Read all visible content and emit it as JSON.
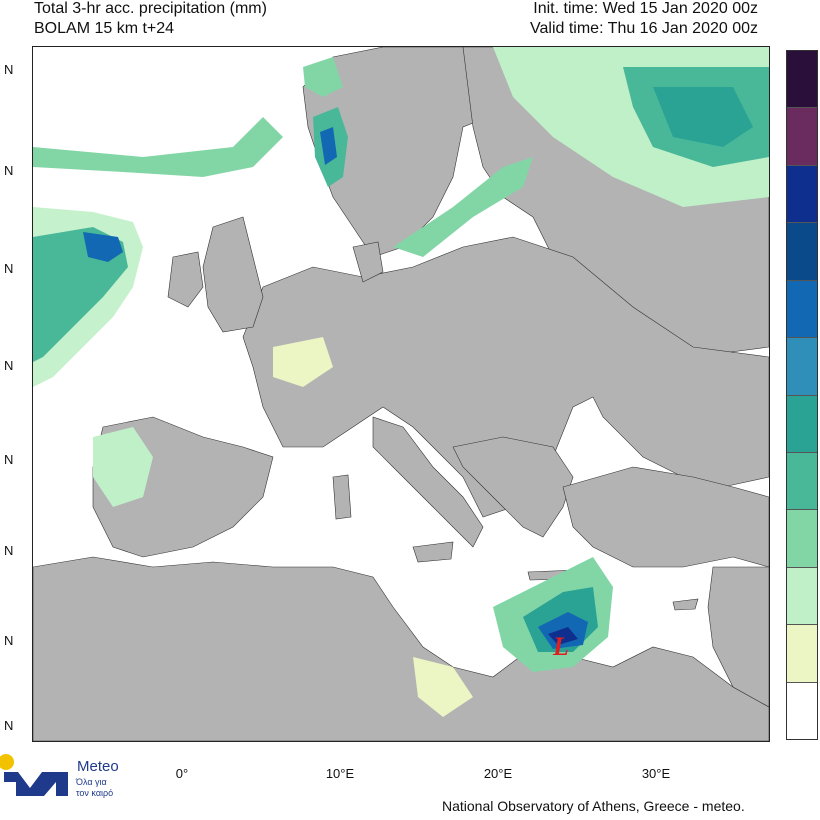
{
  "header": {
    "title_line1": "Total 3-hr acc. precipitation (mm)",
    "title_line2": "BOLAM 15 km t+24",
    "init_time": "Init. time: Wed 15 Jan 2020 00z",
    "valid_time": "Valid time: Thu 16 Jan 2020 00z"
  },
  "map": {
    "land_color": "#b3b3b3",
    "sea_color": "#ffffff",
    "border_color": "#222222",
    "low_marker": "L",
    "low_marker_color": "#e02020",
    "lat_ticks": [
      "N",
      "N",
      "N",
      "N",
      "N",
      "N",
      "N",
      "N"
    ],
    "lon_labels": [
      "0°",
      "10°E",
      "20°E",
      "30°E"
    ]
  },
  "colorbar": {
    "colors_top_to_bottom": [
      "#2a0f3a",
      "#6a2c5e",
      "#0f2f8f",
      "#0a4a8a",
      "#1268b3",
      "#2f8fb8",
      "#2aa395",
      "#48b898",
      "#82d6a6",
      "#bff0c8",
      "#ecf5c4",
      "#ffffff"
    ]
  },
  "logo": {
    "word": "Meteo",
    "tagline1": "Όλα για",
    "tagline2": "τον καιρό",
    "icon": "meteo-logo-icon"
  },
  "footer": {
    "credit": "National Observatory of Athens, Greece - meteo."
  }
}
